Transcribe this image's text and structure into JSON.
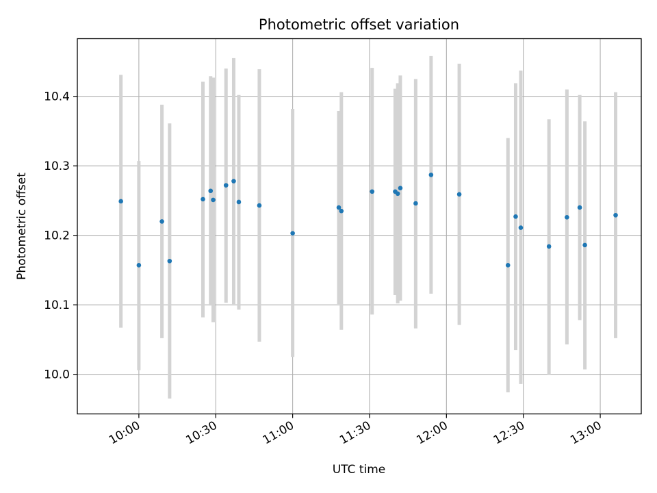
{
  "chart_data": {
    "type": "scatter",
    "title": "Photometric offset variation",
    "xlabel": "UTC time",
    "ylabel": "Photometric offset",
    "x_range": [
      "09:36",
      "13:16"
    ],
    "ylim": [
      9.943,
      10.483
    ],
    "x_ticks": [
      "10:00",
      "10:30",
      "11:00",
      "11:30",
      "12:00",
      "12:30",
      "13:00"
    ],
    "y_ticks": [
      10.0,
      10.1,
      10.2,
      10.3,
      10.4
    ],
    "grid": true,
    "colors": {
      "point": "#1f77b4",
      "errorbar": "#d3d3d3",
      "grid": "#b0b0b0"
    },
    "points": [
      {
        "x": "09:53",
        "y": 10.249,
        "err_low": 10.067,
        "err_high": 10.431
      },
      {
        "x": "10:00",
        "y": 10.157,
        "err_low": 10.006,
        "err_high": 10.307
      },
      {
        "x": "10:09",
        "y": 10.22,
        "err_low": 10.052,
        "err_high": 10.388
      },
      {
        "x": "10:12",
        "y": 10.163,
        "err_low": 9.965,
        "err_high": 10.361
      },
      {
        "x": "10:25",
        "y": 10.252,
        "err_low": 10.082,
        "err_high": 10.421
      },
      {
        "x": "10:28",
        "y": 10.264,
        "err_low": 10.099,
        "err_high": 10.429
      },
      {
        "x": "10:29",
        "y": 10.251,
        "err_low": 10.075,
        "err_high": 10.427
      },
      {
        "x": "10:34",
        "y": 10.272,
        "err_low": 10.103,
        "err_high": 10.44
      },
      {
        "x": "10:37",
        "y": 10.278,
        "err_low": 10.101,
        "err_high": 10.455
      },
      {
        "x": "10:39",
        "y": 10.248,
        "err_low": 10.093,
        "err_high": 10.402
      },
      {
        "x": "10:47",
        "y": 10.243,
        "err_low": 10.047,
        "err_high": 10.439
      },
      {
        "x": "11:00",
        "y": 10.203,
        "err_low": 10.025,
        "err_high": 10.382
      },
      {
        "x": "11:18",
        "y": 10.24,
        "err_low": 10.101,
        "err_high": 10.379
      },
      {
        "x": "11:19",
        "y": 10.235,
        "err_low": 10.064,
        "err_high": 10.406
      },
      {
        "x": "11:31",
        "y": 10.263,
        "err_low": 10.086,
        "err_high": 10.441
      },
      {
        "x": "11:40",
        "y": 10.263,
        "err_low": 10.114,
        "err_high": 10.411
      },
      {
        "x": "11:41",
        "y": 10.26,
        "err_low": 10.102,
        "err_high": 10.419
      },
      {
        "x": "11:42",
        "y": 10.268,
        "err_low": 10.106,
        "err_high": 10.43
      },
      {
        "x": "11:48",
        "y": 10.246,
        "err_low": 10.066,
        "err_high": 10.425
      },
      {
        "x": "11:54",
        "y": 10.287,
        "err_low": 10.116,
        "err_high": 10.458
      },
      {
        "x": "12:05",
        "y": 10.259,
        "err_low": 10.071,
        "err_high": 10.447
      },
      {
        "x": "12:24",
        "y": 10.157,
        "err_low": 9.974,
        "err_high": 10.34
      },
      {
        "x": "12:27",
        "y": 10.227,
        "err_low": 10.035,
        "err_high": 10.419
      },
      {
        "x": "12:29",
        "y": 10.211,
        "err_low": 9.986,
        "err_high": 10.437
      },
      {
        "x": "12:40",
        "y": 10.184,
        "err_low": 10.0,
        "err_high": 10.367
      },
      {
        "x": "12:47",
        "y": 10.226,
        "err_low": 10.043,
        "err_high": 10.41
      },
      {
        "x": "12:52",
        "y": 10.24,
        "err_low": 10.078,
        "err_high": 10.402
      },
      {
        "x": "12:54",
        "y": 10.186,
        "err_low": 10.007,
        "err_high": 10.364
      },
      {
        "x": "13:06",
        "y": 10.229,
        "err_low": 10.052,
        "err_high": 10.406
      }
    ]
  }
}
